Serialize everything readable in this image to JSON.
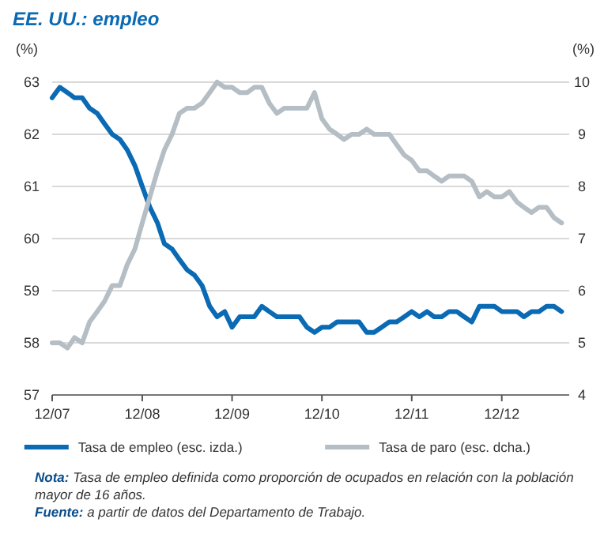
{
  "chart_data": {
    "type": "line",
    "title": "EE. UU.: empleo",
    "ylabel": "(%)",
    "y2label": "(%)",
    "x": [
      "2007-12",
      "2008-01",
      "2008-02",
      "2008-03",
      "2008-04",
      "2008-05",
      "2008-06",
      "2008-07",
      "2008-08",
      "2008-09",
      "2008-10",
      "2008-11",
      "2008-12",
      "2009-01",
      "2009-02",
      "2009-03",
      "2009-04",
      "2009-05",
      "2009-06",
      "2009-07",
      "2009-08",
      "2009-09",
      "2009-10",
      "2009-11",
      "2009-12",
      "2010-01",
      "2010-02",
      "2010-03",
      "2010-04",
      "2010-05",
      "2010-06",
      "2010-07",
      "2010-08",
      "2010-09",
      "2010-10",
      "2010-11",
      "2010-12",
      "2011-01",
      "2011-02",
      "2011-03",
      "2011-04",
      "2011-05",
      "2011-06",
      "2011-07",
      "2011-08",
      "2011-09",
      "2011-10",
      "2011-11",
      "2011-12",
      "2012-01",
      "2012-02",
      "2012-03",
      "2012-04",
      "2012-05",
      "2012-06",
      "2012-07",
      "2012-08",
      "2012-09",
      "2012-10",
      "2012-11",
      "2012-12",
      "2013-01",
      "2013-02",
      "2013-03",
      "2013-04",
      "2013-05",
      "2013-06",
      "2013-07",
      "2013-08"
    ],
    "series": [
      {
        "name": "Tasa de empleo (esc. izda.)",
        "color": "#0a6ab4",
        "values": [
          62.7,
          62.9,
          62.8,
          62.7,
          62.7,
          62.5,
          62.4,
          62.2,
          62.0,
          61.9,
          61.7,
          61.4,
          61.0,
          60.6,
          60.3,
          59.9,
          59.8,
          59.6,
          59.4,
          59.3,
          59.1,
          58.7,
          58.5,
          58.6,
          58.3,
          58.5,
          58.5,
          58.5,
          58.7,
          58.6,
          58.5,
          58.5,
          58.5,
          58.5,
          58.3,
          58.2,
          58.3,
          58.3,
          58.4,
          58.4,
          58.4,
          58.4,
          58.2,
          58.2,
          58.3,
          58.4,
          58.4,
          58.5,
          58.6,
          58.5,
          58.6,
          58.5,
          58.5,
          58.6,
          58.6,
          58.5,
          58.4,
          58.7,
          58.7,
          58.7,
          58.6,
          58.6,
          58.6,
          58.5,
          58.6,
          58.6,
          58.7,
          58.7,
          58.6
        ]
      },
      {
        "name": "Tasa de paro (esc. dcha.)",
        "color": "#b4bec4",
        "axis": "y2",
        "values": [
          5.0,
          5.0,
          4.9,
          5.1,
          5.0,
          5.4,
          5.6,
          5.8,
          6.1,
          6.1,
          6.5,
          6.8,
          7.3,
          7.8,
          8.3,
          8.7,
          9.0,
          9.4,
          9.5,
          9.5,
          9.6,
          9.8,
          10.0,
          9.9,
          9.9,
          9.8,
          9.8,
          9.9,
          9.9,
          9.6,
          9.4,
          9.5,
          9.5,
          9.5,
          9.5,
          9.8,
          9.3,
          9.1,
          9.0,
          8.9,
          9.0,
          9.0,
          9.1,
          9.0,
          9.0,
          9.0,
          8.8,
          8.6,
          8.5,
          8.3,
          8.3,
          8.2,
          8.1,
          8.2,
          8.2,
          8.2,
          8.1,
          7.8,
          7.9,
          7.8,
          7.8,
          7.9,
          7.7,
          7.6,
          7.5,
          7.6,
          7.6,
          7.4,
          7.3
        ]
      }
    ],
    "xlim": [
      "2007-12",
      "2013-09"
    ],
    "xticks": [
      {
        "value": "2007-12",
        "label": "12/07"
      },
      {
        "value": "2008-12",
        "label": "12/08"
      },
      {
        "value": "2009-12",
        "label": "12/09"
      },
      {
        "value": "2010-12",
        "label": "12/10"
      },
      {
        "value": "2011-12",
        "label": "12/11"
      },
      {
        "value": "2012-12",
        "label": "12/12"
      }
    ],
    "ylim": [
      57,
      63
    ],
    "yticks": [
      57,
      58,
      59,
      60,
      61,
      62,
      63
    ],
    "y2lim": [
      4,
      10
    ],
    "y2ticks": [
      4,
      5,
      6,
      7,
      8,
      9,
      10
    ],
    "grid": "y",
    "legend": "bottom",
    "marker": "none",
    "line_style": "solid",
    "annotations": [
      "Nota: Tasa de empleo definida como proporción de ocupados en relación con la población mayor de 16 años.",
      "Fuente: a partir de datos del Departamento de Trabajo."
    ]
  }
}
